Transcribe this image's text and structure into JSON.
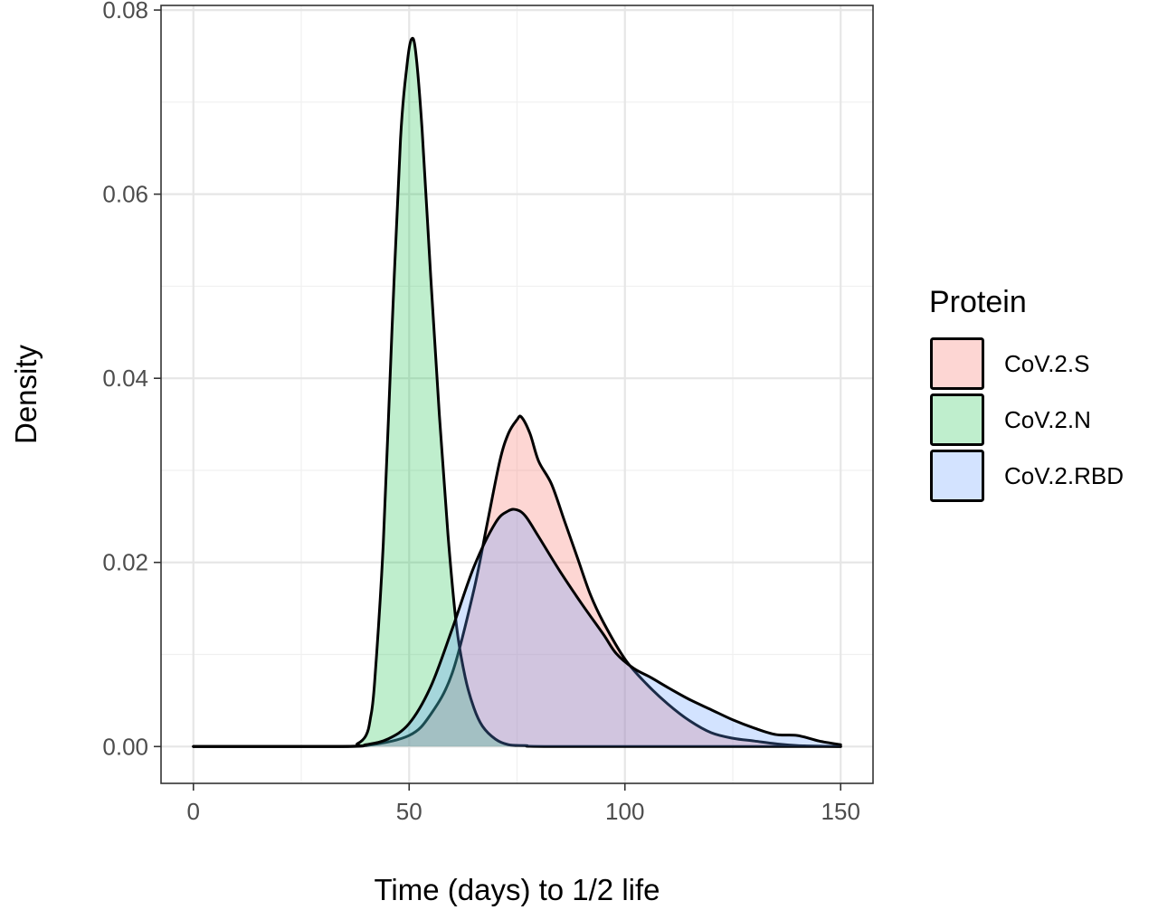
{
  "chart_data": {
    "type": "area",
    "xlabel": "Time (days) to 1/2 life",
    "ylabel": "Density",
    "xlim": [
      -7.5,
      157.5
    ],
    "ylim": [
      -0.004,
      0.0805
    ],
    "x_ticks": [
      0,
      50,
      100,
      150
    ],
    "x_tick_labels": [
      "0",
      "50",
      "100",
      "150"
    ],
    "y_ticks": [
      0,
      0.02,
      0.04,
      0.06,
      0.08
    ],
    "y_tick_labels": [
      "0.00",
      "0.02",
      "0.04",
      "0.06",
      "0.08"
    ],
    "grid": true,
    "legend_title": "Protein",
    "legend_position": "right",
    "series": [
      {
        "name": "CoV.2.S",
        "color": "#F8766D",
        "fill_opacity": 0.3,
        "points": [
          [
            0,
            0
          ],
          [
            30,
            0
          ],
          [
            40,
            0.0001
          ],
          [
            50,
            0.0012
          ],
          [
            55,
            0.0035
          ],
          [
            60,
            0.008
          ],
          [
            65,
            0.017
          ],
          [
            68,
            0.024
          ],
          [
            71,
            0.031
          ],
          [
            73,
            0.034
          ],
          [
            75,
            0.0355
          ],
          [
            76,
            0.0358
          ],
          [
            78,
            0.034
          ],
          [
            80,
            0.031
          ],
          [
            83,
            0.0285
          ],
          [
            86,
            0.0245
          ],
          [
            89,
            0.0205
          ],
          [
            92,
            0.0165
          ],
          [
            95,
            0.0135
          ],
          [
            100,
            0.0095
          ],
          [
            105,
            0.0068
          ],
          [
            110,
            0.0046
          ],
          [
            115,
            0.0028
          ],
          [
            120,
            0.0015
          ],
          [
            125,
            0.0009
          ],
          [
            130,
            0.0006
          ],
          [
            135,
            0.0003
          ],
          [
            140,
            0.0001
          ],
          [
            150,
            0
          ]
        ]
      },
      {
        "name": "CoV.2.N",
        "color": "#00BA38",
        "fill_opacity": 0.25,
        "points": [
          [
            0,
            0
          ],
          [
            35,
            0
          ],
          [
            38,
            0.0003
          ],
          [
            40,
            0.0012
          ],
          [
            41,
            0.003
          ],
          [
            42,
            0.007
          ],
          [
            44,
            0.022
          ],
          [
            46,
            0.045
          ],
          [
            48,
            0.066
          ],
          [
            49.5,
            0.074
          ],
          [
            50.5,
            0.0768
          ],
          [
            51.5,
            0.0755
          ],
          [
            53,
            0.067
          ],
          [
            55,
            0.051
          ],
          [
            57,
            0.036
          ],
          [
            59,
            0.023
          ],
          [
            61,
            0.013
          ],
          [
            63,
            0.0075
          ],
          [
            65,
            0.0042
          ],
          [
            67,
            0.0022
          ],
          [
            70,
            0.0008
          ],
          [
            73,
            0.0002
          ],
          [
            77,
            0.0001
          ],
          [
            85,
            0
          ],
          [
            150,
            0
          ]
        ]
      },
      {
        "name": "CoV.2.RBD",
        "color": "#619CFF",
        "fill_opacity": 0.28,
        "points": [
          [
            0,
            0
          ],
          [
            35,
            0
          ],
          [
            40,
            0.0002
          ],
          [
            45,
            0.0008
          ],
          [
            50,
            0.0025
          ],
          [
            55,
            0.0065
          ],
          [
            60,
            0.0128
          ],
          [
            65,
            0.0195
          ],
          [
            70,
            0.0243
          ],
          [
            73,
            0.0256
          ],
          [
            75,
            0.0257
          ],
          [
            77,
            0.025
          ],
          [
            80,
            0.0228
          ],
          [
            85,
            0.019
          ],
          [
            90,
            0.0155
          ],
          [
            95,
            0.0122
          ],
          [
            98,
            0.0101
          ],
          [
            102,
            0.0085
          ],
          [
            106,
            0.0075
          ],
          [
            110,
            0.0064
          ],
          [
            115,
            0.0051
          ],
          [
            120,
            0.004
          ],
          [
            125,
            0.0029
          ],
          [
            130,
            0.002
          ],
          [
            135,
            0.0013
          ],
          [
            140,
            0.0012
          ],
          [
            145,
            0.0006
          ],
          [
            150,
            0.0002
          ]
        ]
      }
    ]
  }
}
